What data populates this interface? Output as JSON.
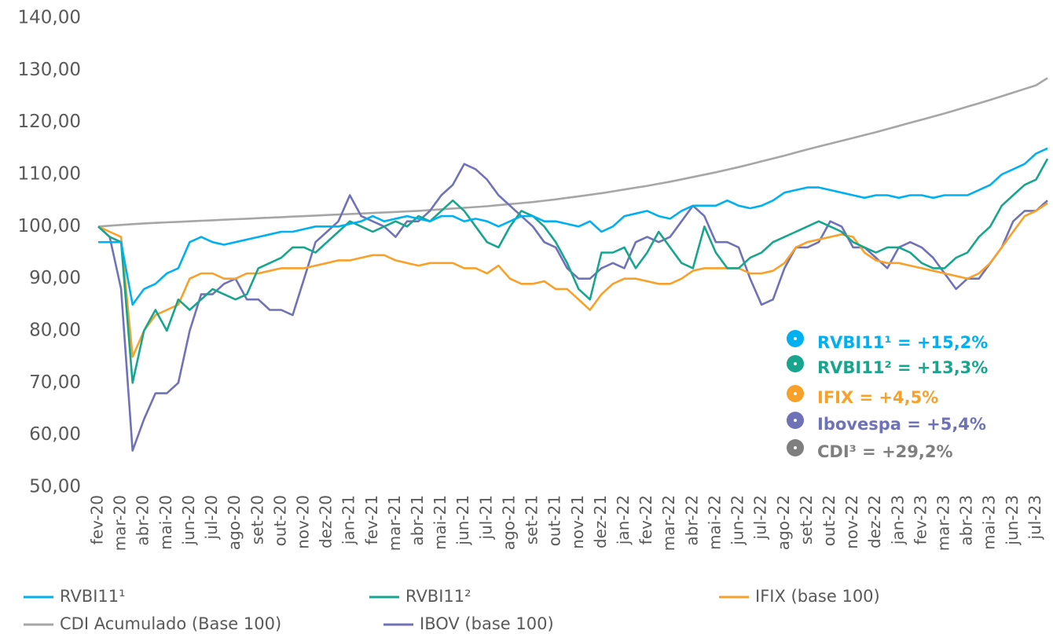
{
  "chart_data": {
    "type": "line",
    "categories": [
      "fev-20",
      null,
      "mar-20",
      null,
      "abr-20",
      null,
      "mai-20",
      null,
      "jun-20",
      null,
      "jul-20",
      null,
      "ago-20",
      null,
      "set-20",
      null,
      "out-20",
      null,
      "nov-20",
      null,
      "dez-20",
      null,
      "jan-21",
      null,
      "fev-21",
      null,
      "mar-21",
      null,
      "abr-21",
      null,
      "mai-21",
      null,
      "jun-21",
      null,
      "jul-21",
      null,
      "ago-21",
      null,
      "set-21",
      null,
      "out-21",
      null,
      "nov-21",
      null,
      "dez-21",
      null,
      "jan-22",
      null,
      "fev-22",
      null,
      "mar-22",
      null,
      "abr-22",
      null,
      "mai-22",
      null,
      "jun-22",
      null,
      "jul-22",
      null,
      "ago-22",
      null,
      "set-22",
      null,
      "out-22",
      null,
      "nov-22",
      null,
      "dez-22",
      null,
      "jan-23",
      null,
      "fev-23",
      null,
      "mar-23",
      null,
      "abr-23",
      null,
      "mai-23",
      null,
      "jun-23",
      null,
      "jul-23",
      null
    ],
    "series": [
      {
        "name": "RVBI11¹",
        "color": "#00b0f0",
        "values": [
          97,
          97,
          97,
          85,
          88,
          89,
          91,
          92,
          97,
          98,
          97,
          96.5,
          97,
          97.5,
          98,
          98.5,
          99,
          99,
          99.5,
          100,
          100,
          100,
          100.5,
          101,
          102,
          101,
          101.5,
          102,
          101.5,
          101,
          102,
          102,
          101,
          101.5,
          101,
          100,
          101,
          102,
          102,
          101,
          101,
          100.5,
          100,
          101,
          99,
          100,
          102,
          102.5,
          103,
          102,
          101.5,
          103,
          104,
          104,
          104,
          105,
          104,
          103.5,
          104,
          105,
          106.5,
          107,
          107.5,
          107.5,
          107,
          106.5,
          106,
          105.5,
          106,
          106,
          105.5,
          106,
          106,
          105.5,
          106,
          106,
          106,
          107,
          108,
          110,
          111,
          112,
          114,
          115
        ]
      },
      {
        "name": "RVBI11²",
        "color": "#17a68d",
        "values": [
          100,
          98,
          97,
          70,
          80,
          84,
          80,
          86,
          84,
          86,
          88,
          87,
          86,
          87,
          92,
          93,
          94,
          96,
          96,
          95,
          97,
          99,
          101,
          100,
          99,
          100,
          101,
          100,
          102,
          101,
          103,
          105,
          103,
          100,
          97,
          96,
          100,
          103,
          102,
          100,
          97,
          93,
          88,
          86,
          95,
          95,
          96,
          92,
          95,
          99,
          96,
          93,
          92,
          100,
          95,
          92,
          92,
          94,
          95,
          97,
          98,
          99,
          100,
          101,
          100,
          99,
          97,
          96,
          95,
          96,
          96,
          95,
          93,
          92,
          92,
          94,
          95,
          98,
          100,
          104,
          106,
          108,
          109,
          113
        ]
      },
      {
        "name": "IFIX (base 100)",
        "color": "#f7a12a",
        "values": [
          100,
          99,
          98,
          75,
          80,
          83,
          84,
          85,
          90,
          91,
          91,
          90,
          90,
          91,
          91,
          91.5,
          92,
          92,
          92,
          92.5,
          93,
          93.5,
          93.5,
          94,
          94.5,
          94.5,
          93.5,
          93,
          92.5,
          93,
          93,
          93,
          92,
          92,
          91,
          92.5,
          90,
          89,
          89,
          89.5,
          88,
          88,
          86,
          84,
          87,
          89,
          90,
          90,
          89.5,
          89,
          89,
          90,
          91.5,
          92,
          92,
          92,
          92,
          91,
          91,
          91.5,
          93,
          96,
          97,
          97.5,
          98,
          98.5,
          98,
          95,
          93.5,
          93,
          93,
          92.5,
          92,
          91.5,
          91,
          90.5,
          90,
          91,
          93,
          96,
          99,
          102,
          103,
          104.5
        ]
      },
      {
        "name": "CDI Acumulado (Base 100)",
        "color": "#a6a6a6",
        "values": [
          100,
          100.15,
          100.3,
          100.45,
          100.6,
          100.7,
          100.8,
          100.9,
          101,
          101.1,
          101.2,
          101.3,
          101.4,
          101.5,
          101.6,
          101.7,
          101.8,
          101.9,
          102,
          102.1,
          102.2,
          102.3,
          102.4,
          102.5,
          102.6,
          102.7,
          102.8,
          102.9,
          103,
          103.15,
          103.3,
          103.45,
          103.6,
          103.75,
          103.9,
          104.1,
          104.3,
          104.5,
          104.7,
          104.95,
          105.2,
          105.5,
          105.8,
          106.1,
          106.4,
          106.75,
          107.1,
          107.45,
          107.8,
          108.2,
          108.6,
          109.05,
          109.5,
          109.95,
          110.4,
          110.9,
          111.4,
          111.95,
          112.5,
          113.05,
          113.6,
          114.2,
          114.8,
          115.35,
          115.9,
          116.45,
          117,
          117.55,
          118.1,
          118.7,
          119.3,
          119.9,
          120.5,
          121.1,
          121.7,
          122.35,
          123,
          123.65,
          124.3,
          125,
          125.7,
          126.4,
          127.1,
          128.5
        ]
      },
      {
        "name": "IBOV (base 100)",
        "color": "#7072b8",
        "values": [
          100,
          98,
          88,
          57,
          63,
          68,
          68,
          70,
          80,
          87,
          87,
          89,
          90,
          86,
          86,
          84,
          84,
          83,
          90,
          97,
          99,
          101,
          106,
          102,
          101,
          100,
          98,
          101,
          101,
          103,
          106,
          108,
          112,
          111,
          109,
          106,
          104,
          102,
          100,
          97,
          96,
          92,
          90,
          90,
          92,
          93,
          92,
          97,
          98,
          97,
          98,
          101,
          104,
          102,
          97,
          97,
          96,
          90,
          85,
          86,
          92,
          96,
          96,
          97,
          101,
          100,
          96,
          96,
          94,
          92,
          96,
          97,
          96,
          94,
          91,
          88,
          90,
          90,
          93,
          96,
          101,
          103,
          103,
          105
        ]
      }
    ],
    "ylim": [
      50,
      140
    ],
    "yticks": [
      {
        "value": 50,
        "label": "50,00"
      },
      {
        "value": 60,
        "label": "60,00"
      },
      {
        "value": 70,
        "label": "70,00"
      },
      {
        "value": 80,
        "label": "80,00"
      },
      {
        "value": 90,
        "label": "90,00"
      },
      {
        "value": 100,
        "label": "100,00"
      },
      {
        "value": 110,
        "label": "110,00"
      },
      {
        "value": 120,
        "label": "120,00"
      },
      {
        "value": 130,
        "label": "130,00"
      },
      {
        "value": 140,
        "label": "140,00"
      }
    ],
    "grid": false,
    "legend": "bottom",
    "annotations": [
      {
        "text": "RVBI11¹ = +15,2%",
        "color": "#00b0f0"
      },
      {
        "text": "RVBI11² = +13,3%",
        "color": "#17a68d"
      },
      {
        "text": "IFIX = +4,5%",
        "color": "#f7a12a"
      },
      {
        "text": "Ibovespa = +5,4%",
        "color": "#7072b8"
      },
      {
        "text": "CDI³ = +29,2%",
        "color": "#7f7f7f"
      }
    ]
  }
}
